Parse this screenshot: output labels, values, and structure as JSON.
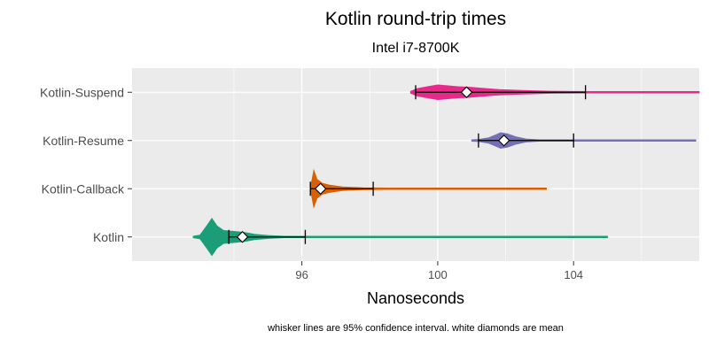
{
  "chart_data": {
    "type": "violin",
    "title": "Kotlin  round-trip times",
    "subtitle": "Intel i7-8700K",
    "xlabel": "Nanoseconds",
    "ylabel": "",
    "caption": "whisker lines are 95% confidence interval. white diamonds are mean",
    "xlim": [
      91.0,
      107.7
    ],
    "x_ticks": [
      96,
      100,
      104
    ],
    "x_tick_labels": [
      "96",
      "100",
      "104"
    ],
    "grid": true,
    "categories": [
      "Kotlin",
      "Kotlin-Callback",
      "Kotlin-Resume",
      "Kotlin-Suspend"
    ],
    "series": [
      {
        "name": "Kotlin",
        "color": "#1b9e77",
        "range": [
          92.8,
          105.0
        ],
        "mean": 94.25,
        "ci": [
          93.85,
          96.1
        ],
        "density": [
          [
            92.8,
            0.02
          ],
          [
            93.0,
            0.1
          ],
          [
            93.2,
            0.6
          ],
          [
            93.35,
            1.0
          ],
          [
            93.5,
            0.6
          ],
          [
            93.7,
            0.35
          ],
          [
            94.0,
            0.3
          ],
          [
            94.3,
            0.25
          ],
          [
            94.6,
            0.15
          ],
          [
            95.0,
            0.08
          ],
          [
            95.5,
            0.04
          ],
          [
            96.5,
            0.02
          ],
          [
            98.0,
            0.015
          ],
          [
            105.0,
            0.012
          ]
        ]
      },
      {
        "name": "Kotlin-Callback",
        "color": "#d95f02",
        "range": [
          96.25,
          103.2
        ],
        "mean": 96.55,
        "ci": [
          96.25,
          98.1
        ],
        "density": [
          [
            96.25,
            0.05
          ],
          [
            96.3,
            0.5
          ],
          [
            96.35,
            1.0
          ],
          [
            96.45,
            0.5
          ],
          [
            96.6,
            0.3
          ],
          [
            96.8,
            0.2
          ],
          [
            97.2,
            0.1
          ],
          [
            97.8,
            0.05
          ],
          [
            98.5,
            0.03
          ],
          [
            100.0,
            0.02
          ],
          [
            103.2,
            0.015
          ]
        ]
      },
      {
        "name": "Kotlin-Resume",
        "color": "#7570b3",
        "range": [
          101.0,
          107.6
        ],
        "mean": 101.95,
        "ci": [
          101.2,
          104.0
        ],
        "density": [
          [
            101.0,
            0.02
          ],
          [
            101.2,
            0.06
          ],
          [
            101.5,
            0.15
          ],
          [
            101.7,
            0.3
          ],
          [
            101.85,
            0.42
          ],
          [
            102.05,
            0.36
          ],
          [
            102.3,
            0.2
          ],
          [
            102.6,
            0.08
          ],
          [
            103.0,
            0.04
          ],
          [
            104.0,
            0.025
          ],
          [
            107.6,
            0.02
          ]
        ]
      },
      {
        "name": "Kotlin-Suspend",
        "color": "#e7298a",
        "range": [
          99.2,
          107.7
        ],
        "mean": 100.85,
        "ci": [
          99.35,
          104.35
        ],
        "density": [
          [
            99.2,
            0.05
          ],
          [
            99.4,
            0.2
          ],
          [
            99.7,
            0.3
          ],
          [
            100.0,
            0.4
          ],
          [
            100.3,
            0.35
          ],
          [
            100.6,
            0.3
          ],
          [
            100.9,
            0.28
          ],
          [
            101.3,
            0.22
          ],
          [
            101.8,
            0.15
          ],
          [
            102.5,
            0.1
          ],
          [
            103.3,
            0.06
          ],
          [
            104.5,
            0.04
          ],
          [
            106.0,
            0.03
          ],
          [
            107.7,
            0.02
          ]
        ]
      }
    ]
  }
}
